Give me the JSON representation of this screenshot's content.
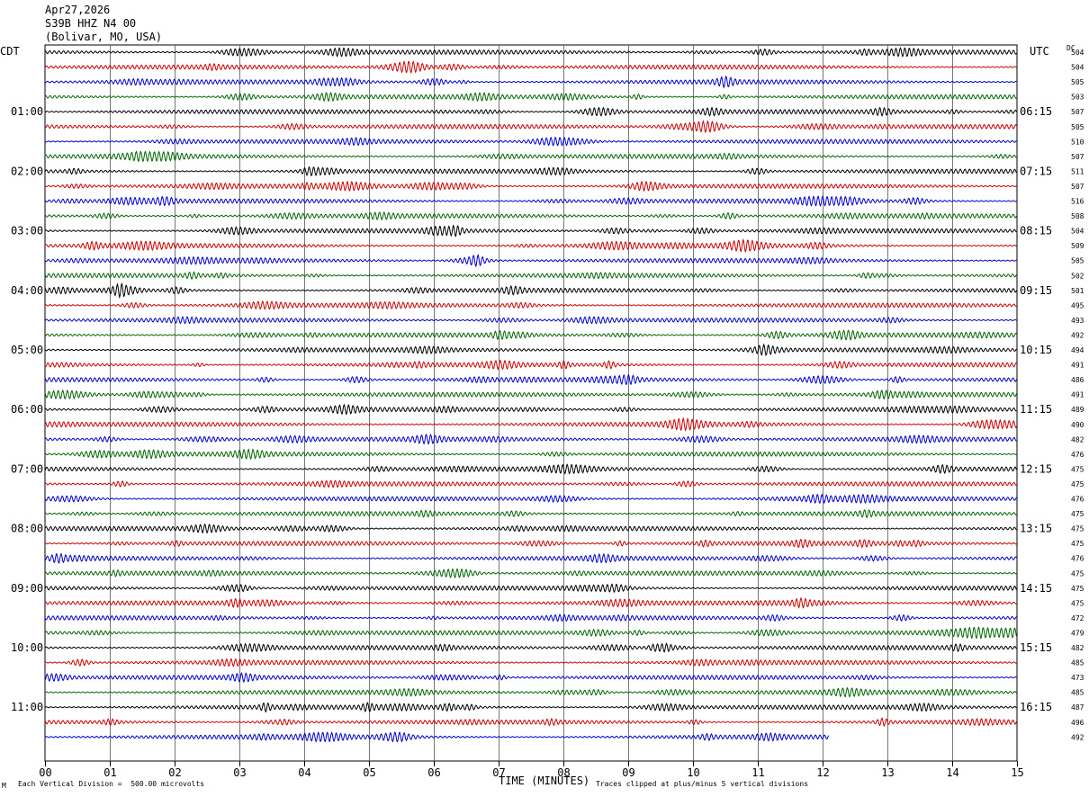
{
  "header": {
    "date": "Apr27,2026",
    "station": "S39B HHZ N4 00",
    "location": "(Bolivar, MO, USA)"
  },
  "corner_labels": {
    "left": "CDT",
    "right": "UTC",
    "dc": "DC"
  },
  "footer": {
    "division": "Each Vertical Division =  500.00 microvolts",
    "xlabel": "TIME (MINUTES)",
    "clip": "Traces clipped at plus/minus 5 vertical divisions",
    "mark": "M"
  },
  "chart_data": {
    "type": "line",
    "title": "",
    "xlabel": "TIME (MINUTES)",
    "xlim": [
      0,
      15
    ],
    "x_ticks": [
      "00",
      "01",
      "02",
      "03",
      "04",
      "05",
      "06",
      "07",
      "08",
      "09",
      "10",
      "11",
      "12",
      "13",
      "14",
      "15"
    ],
    "trace_colors": [
      "#000000",
      "#cc0000",
      "#0000cc",
      "#006600"
    ],
    "left_time_labels": [
      "01:00",
      "02:00",
      "03:00",
      "04:00",
      "05:00",
      "06:00",
      "07:00",
      "08:00",
      "09:00",
      "10:00",
      "11:00"
    ],
    "right_time_labels": [
      "06:15",
      "07:15",
      "08:15",
      "09:15",
      "10:15",
      "11:15",
      "12:15",
      "13:15",
      "14:15",
      "15:15",
      "16:15"
    ],
    "dc_offsets": [
      504,
      504,
      505,
      503,
      507,
      505,
      510,
      507,
      511,
      507,
      516,
      508,
      504,
      509,
      505,
      502,
      501,
      495,
      493,
      492,
      494,
      491,
      486,
      491,
      489,
      490,
      482,
      476,
      475,
      475,
      476,
      475,
      475,
      475,
      476,
      475,
      475,
      475,
      472,
      479,
      482,
      485,
      473,
      485,
      487,
      496,
      492
    ],
    "last_trace_end_minute": 12.1
  }
}
